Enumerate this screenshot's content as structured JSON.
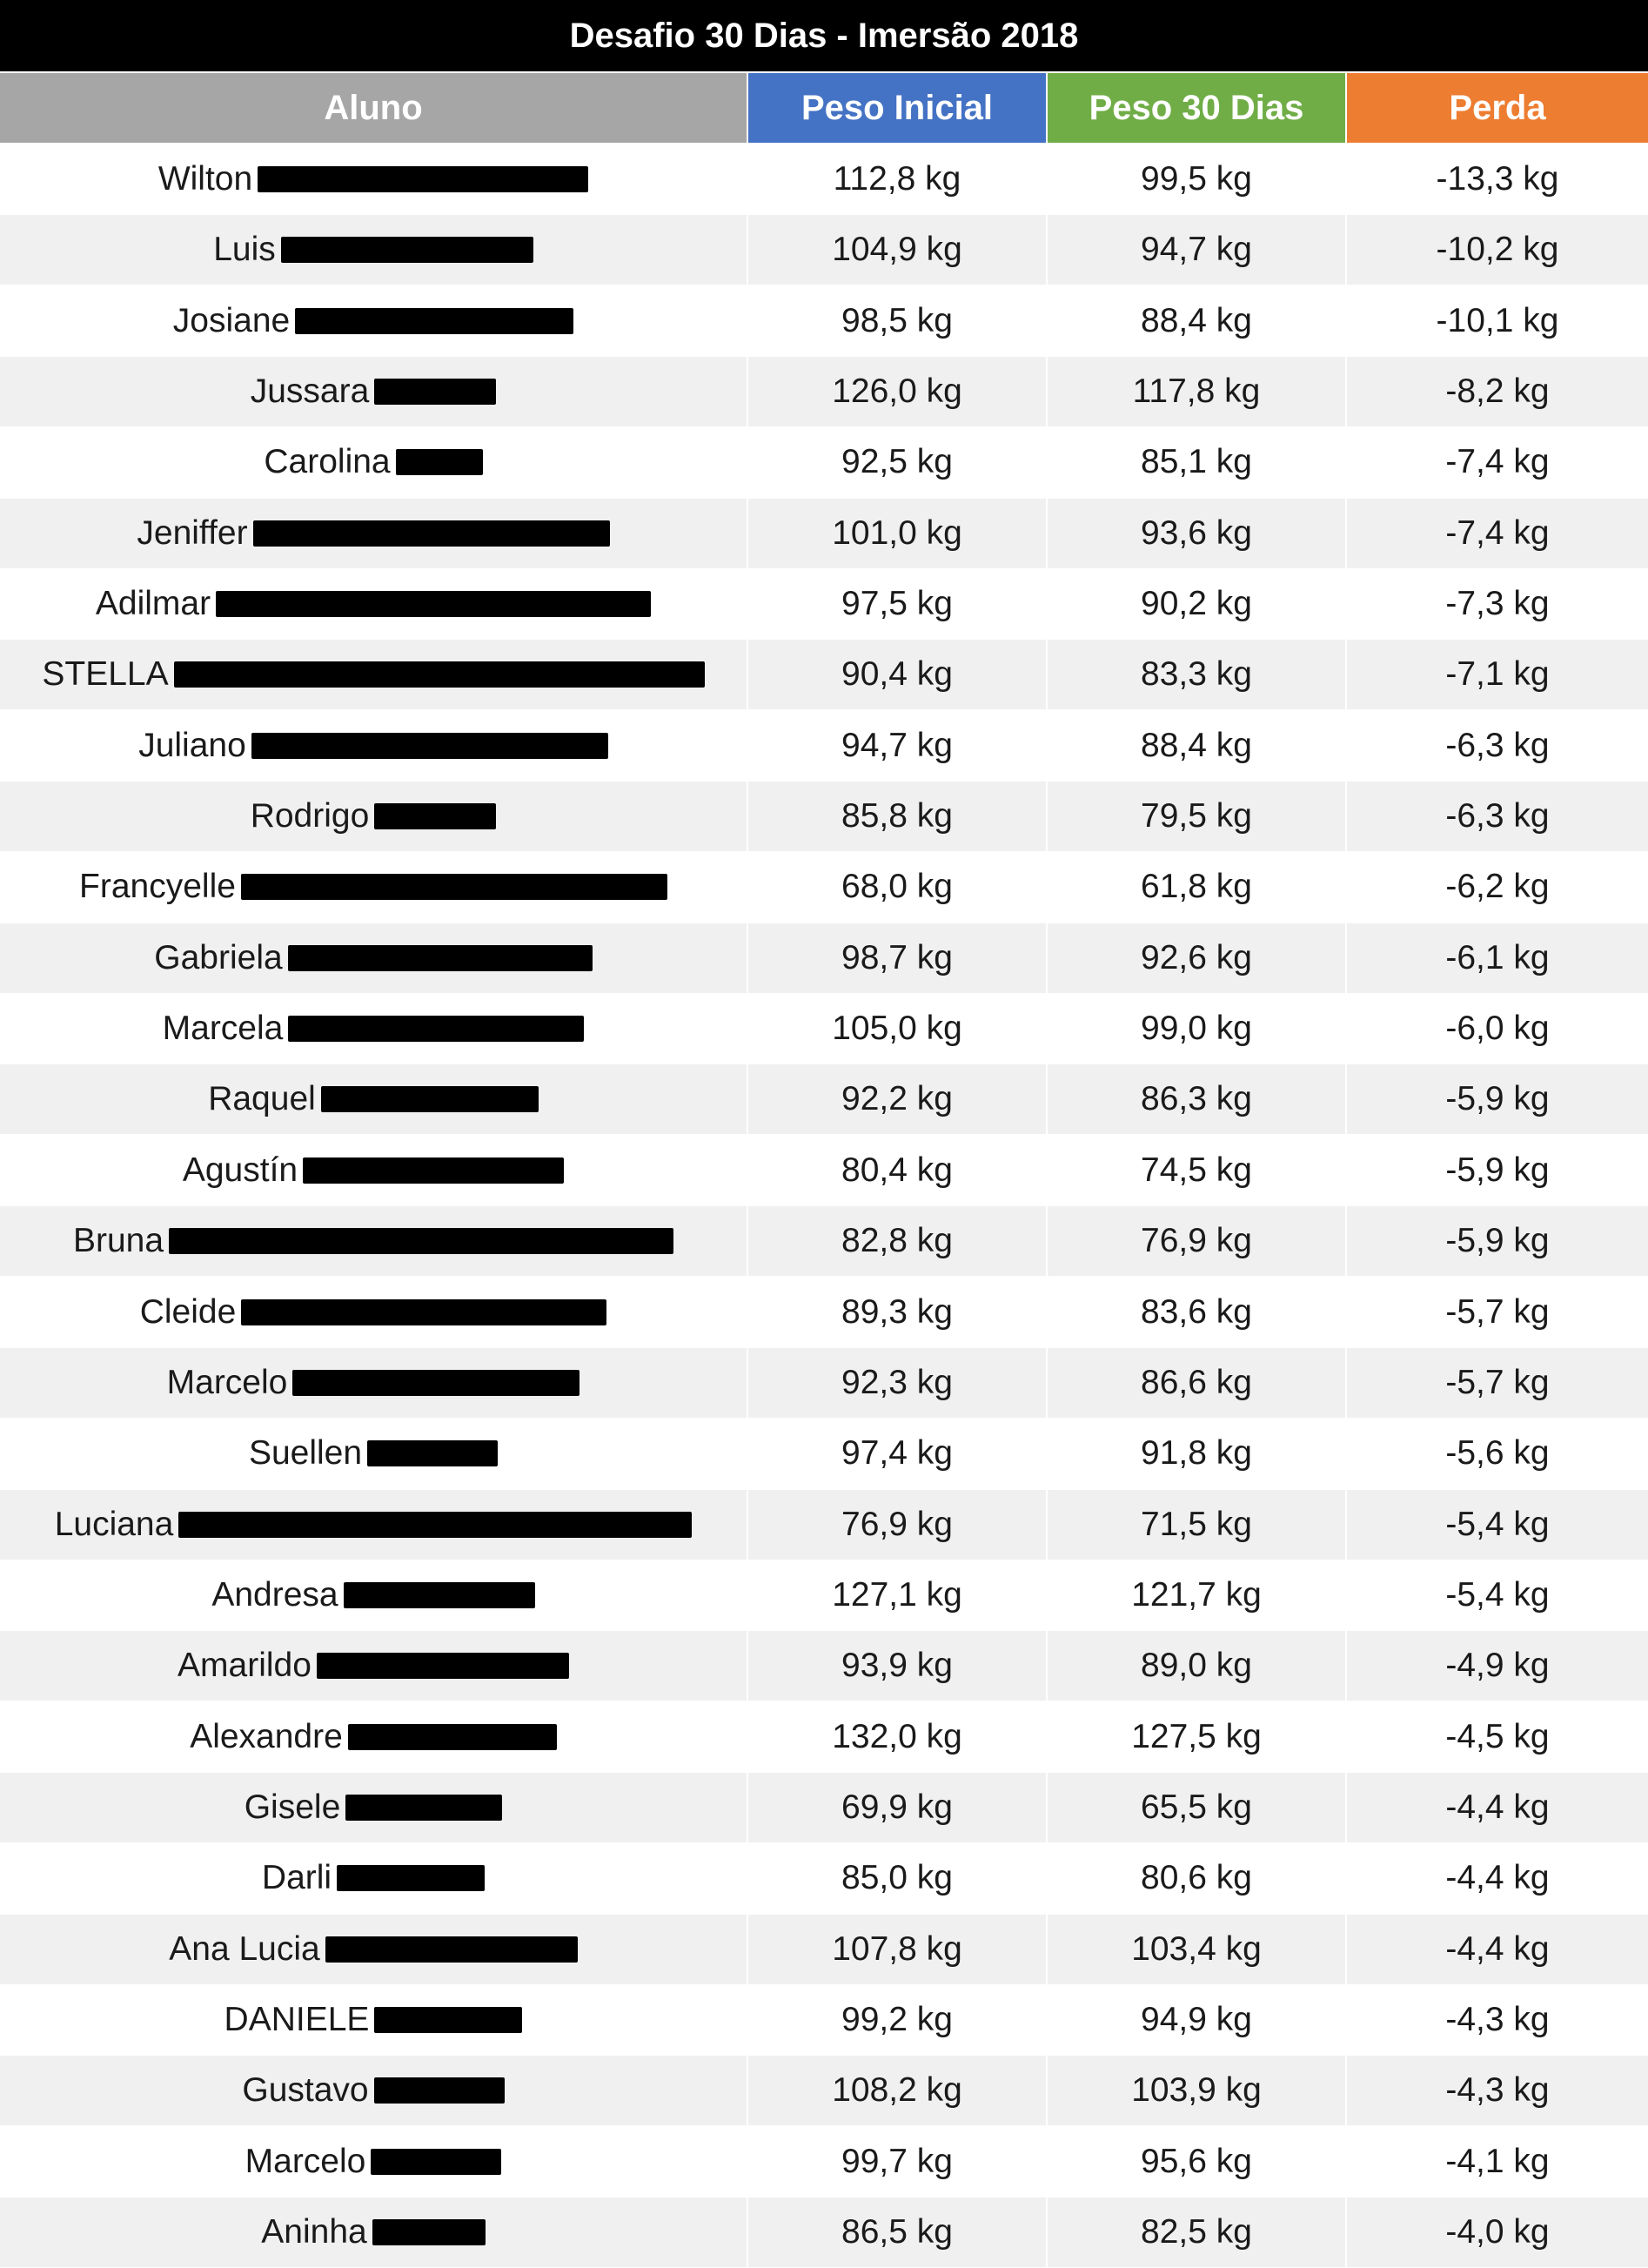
{
  "title": "Desafio 30 Dias - Imersão 2018",
  "colors": {
    "title_bg": "#000000",
    "col_aluno": "#a6a6a6",
    "col_peso_inicial": "#4472c4",
    "col_peso_30": "#70ad47",
    "col_perda": "#ed7d31",
    "stripe": "#f0f0f0"
  },
  "columns": [
    {
      "label": "Aluno"
    },
    {
      "label": "Peso Inicial"
    },
    {
      "label": "Peso 30 Dias"
    },
    {
      "label": "Perda"
    }
  ],
  "rows": [
    {
      "name": "Wilton",
      "inicial": "112,8 kg",
      "final": "99,5 kg",
      "perda": "-13,3 kg"
    },
    {
      "name": "Luis",
      "inicial": "104,9 kg",
      "final": "94,7 kg",
      "perda": "-10,2 kg"
    },
    {
      "name": "Josiane",
      "inicial": "98,5 kg",
      "final": "88,4 kg",
      "perda": "-10,1 kg"
    },
    {
      "name": "Jussara",
      "inicial": "126,0 kg",
      "final": "117,8 kg",
      "perda": "-8,2 kg"
    },
    {
      "name": "Carolina",
      "inicial": "92,5 kg",
      "final": "85,1 kg",
      "perda": "-7,4 kg"
    },
    {
      "name": "Jeniffer",
      "inicial": "101,0 kg",
      "final": "93,6 kg",
      "perda": "-7,4 kg"
    },
    {
      "name": "Adilmar",
      "inicial": "97,5 kg",
      "final": "90,2 kg",
      "perda": "-7,3 kg"
    },
    {
      "name": "STELLA",
      "inicial": "90,4 kg",
      "final": "83,3 kg",
      "perda": "-7,1 kg"
    },
    {
      "name": "Juliano",
      "inicial": "94,7 kg",
      "final": "88,4 kg",
      "perda": "-6,3 kg"
    },
    {
      "name": "Rodrigo",
      "inicial": "85,8 kg",
      "final": "79,5 kg",
      "perda": "-6,3 kg"
    },
    {
      "name": "Francyelle",
      "inicial": "68,0 kg",
      "final": "61,8 kg",
      "perda": "-6,2 kg"
    },
    {
      "name": "Gabriela",
      "inicial": "98,7 kg",
      "final": "92,6 kg",
      "perda": "-6,1 kg"
    },
    {
      "name": "Marcela",
      "inicial": "105,0 kg",
      "final": "99,0 kg",
      "perda": "-6,0 kg"
    },
    {
      "name": "Raquel",
      "inicial": "92,2 kg",
      "final": "86,3 kg",
      "perda": "-5,9 kg"
    },
    {
      "name": "Agustín",
      "inicial": "80,4 kg",
      "final": "74,5 kg",
      "perda": "-5,9 kg"
    },
    {
      "name": "Bruna",
      "inicial": "82,8 kg",
      "final": "76,9 kg",
      "perda": "-5,9 kg"
    },
    {
      "name": "Cleide",
      "inicial": "89,3 kg",
      "final": "83,6 kg",
      "perda": "-5,7 kg"
    },
    {
      "name": "Marcelo",
      "inicial": "92,3 kg",
      "final": "86,6 kg",
      "perda": "-5,7 kg"
    },
    {
      "name": "Suellen",
      "inicial": "97,4 kg",
      "final": "91,8 kg",
      "perda": "-5,6 kg"
    },
    {
      "name": "Luciana",
      "inicial": "76,9 kg",
      "final": "71,5 kg",
      "perda": "-5,4 kg"
    },
    {
      "name": "Andresa",
      "inicial": "127,1 kg",
      "final": "121,7 kg",
      "perda": "-5,4 kg"
    },
    {
      "name": "Amarildo",
      "inicial": "93,9 kg",
      "final": "89,0 kg",
      "perda": "-4,9 kg"
    },
    {
      "name": "Alexandre",
      "inicial": "132,0 kg",
      "final": "127,5 kg",
      "perda": "-4,5 kg"
    },
    {
      "name": "Gisele",
      "inicial": "69,9 kg",
      "final": "65,5 kg",
      "perda": "-4,4 kg"
    },
    {
      "name": "Darli",
      "inicial": "85,0 kg",
      "final": "80,6 kg",
      "perda": "-4,4 kg"
    },
    {
      "name": "Ana Lucia",
      "inicial": "107,8 kg",
      "final": "103,4 kg",
      "perda": "-4,4 kg"
    },
    {
      "name": "DANIELE",
      "inicial": "99,2 kg",
      "final": "94,9 kg",
      "perda": "-4,3 kg"
    },
    {
      "name": "Gustavo",
      "inicial": "108,2 kg",
      "final": "103,9 kg",
      "perda": "-4,3 kg"
    },
    {
      "name": "Marcelo",
      "inicial": "99,7 kg",
      "final": "95,6 kg",
      "perda": "-4,1 kg"
    },
    {
      "name": "Aninha",
      "inicial": "86,5 kg",
      "final": "82,5 kg",
      "perda": "-4,0 kg"
    }
  ]
}
